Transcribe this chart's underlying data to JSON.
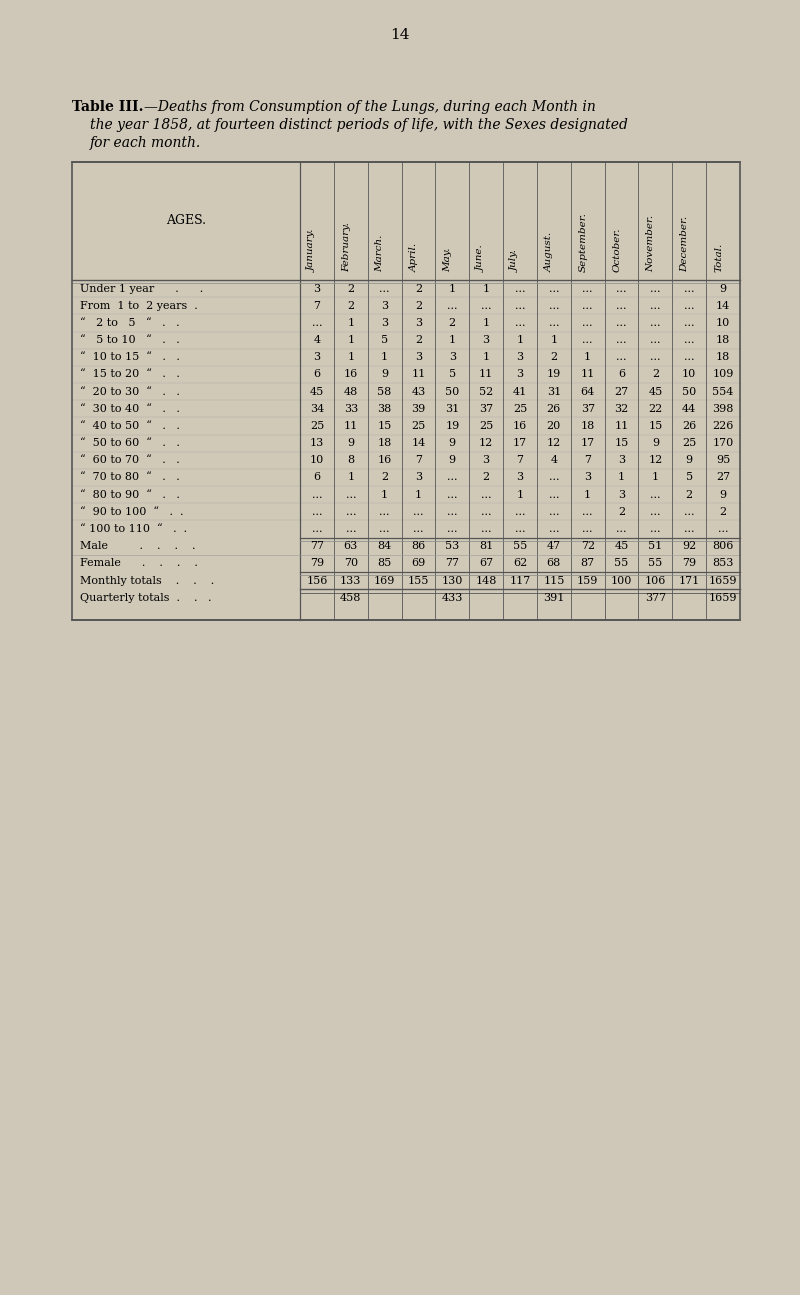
{
  "page_number": "14",
  "bg_color": "#cfc8b8",
  "table_bg": "#cac3b2",
  "title_bold": "Table III.",
  "title_dash": "—",
  "title_italic1": "Deaths from Consumption of the Lungs, during each Month in",
  "title_italic2": "the year 1858, at fourteen distinct periods of life, with the Sexes designated",
  "title_italic3": "for each month.",
  "columns": [
    "January.",
    "February.",
    "March.",
    "April.",
    "May.",
    "June.",
    "July.",
    "August.",
    "September.",
    "October.",
    "November.",
    "December.",
    "Total."
  ],
  "age_labels": [
    "Under 1 year      .      .",
    "From  1 to  2 years  .",
    "“   2 to   5   “   .   .",
    "“   5 to 10   “   .   .",
    "“  10 to 15  “   .   .",
    "“  15 to 20  “   .   .",
    "“  20 to 30  “   .   .",
    "“  30 to 40  “   .   .",
    "“  40 to 50  “   .   .",
    "“  50 to 60  “   .   .",
    "“  60 to 70  “   .   .",
    "“  70 to 80  “   .   .",
    "“  80 to 90  “   .   .",
    "“  90 to 100  “   .  .",
    "“ 100 to 110  “   .  ."
  ],
  "age_values": [
    [
      "3",
      "2",
      "...",
      "2",
      "1",
      "1",
      "...",
      "...",
      "...",
      "...",
      "...",
      "...",
      "9"
    ],
    [
      "7",
      "2",
      "3",
      "2",
      "...",
      "...",
      "...",
      "...",
      "...",
      "...",
      "...",
      "...",
      "14"
    ],
    [
      "...",
      "1",
      "3",
      "3",
      "2",
      "1",
      "...",
      "...",
      "...",
      "...",
      "...",
      "...",
      "10"
    ],
    [
      "4",
      "1",
      "5",
      "2",
      "1",
      "3",
      "1",
      "1",
      "...",
      "...",
      "...",
      "...",
      "18"
    ],
    [
      "3",
      "1",
      "1",
      "3",
      "3",
      "1",
      "3",
      "2",
      "1",
      "...",
      "...",
      "...",
      "18"
    ],
    [
      "6",
      "16",
      "9",
      "11",
      "5",
      "11",
      "3",
      "19",
      "11",
      "6",
      "2",
      "10",
      "109"
    ],
    [
      "45",
      "48",
      "58",
      "43",
      "50",
      "52",
      "41",
      "31",
      "64",
      "27",
      "45",
      "50",
      "554"
    ],
    [
      "34",
      "33",
      "38",
      "39",
      "31",
      "37",
      "25",
      "26",
      "37",
      "32",
      "22",
      "44",
      "398"
    ],
    [
      "25",
      "11",
      "15",
      "25",
      "19",
      "25",
      "16",
      "20",
      "18",
      "11",
      "15",
      "26",
      "226"
    ],
    [
      "13",
      "9",
      "18",
      "14",
      "9",
      "12",
      "17",
      "12",
      "17",
      "15",
      "9",
      "25",
      "170"
    ],
    [
      "10",
      "8",
      "16",
      "7",
      "9",
      "3",
      "7",
      "4",
      "7",
      "3",
      "12",
      "9",
      "95"
    ],
    [
      "6",
      "1",
      "2",
      "3",
      "...",
      "2",
      "3",
      "...",
      "3",
      "1",
      "1",
      "5",
      "27"
    ],
    [
      "...",
      "...",
      "1",
      "1",
      "...",
      "...",
      "1",
      "...",
      "1",
      "3",
      "...",
      "2",
      "9"
    ],
    [
      "...",
      "...",
      "...",
      "...",
      "...",
      "...",
      "...",
      "...",
      "...",
      "2",
      "...",
      "...",
      "2"
    ],
    [
      "...",
      "...",
      "...",
      "...",
      "...",
      "...",
      "...",
      "...",
      "...",
      "...",
      "...",
      "...",
      "..."
    ]
  ],
  "male_label": "Male         .    .    .    .",
  "male_values": [
    "77",
    "63",
    "84",
    "86",
    "53",
    "81",
    "55",
    "47",
    "72",
    "45",
    "51",
    "92",
    "806"
  ],
  "female_label": "Female      .    .    .    .",
  "female_values": [
    "79",
    "70",
    "85",
    "69",
    "77",
    "67",
    "62",
    "68",
    "87",
    "55",
    "55",
    "79",
    "853"
  ],
  "monthly_label": "Monthly totals    .    .    .",
  "monthly_values": [
    "156",
    "133",
    "169",
    "155",
    "130",
    "148",
    "117",
    "115",
    "159",
    "100",
    "106",
    "171",
    "1659"
  ],
  "quarterly_label": "Quarterly totals  .    .   .",
  "q_values": [
    "458",
    "433",
    "391",
    "377"
  ],
  "grand_total": "1659"
}
